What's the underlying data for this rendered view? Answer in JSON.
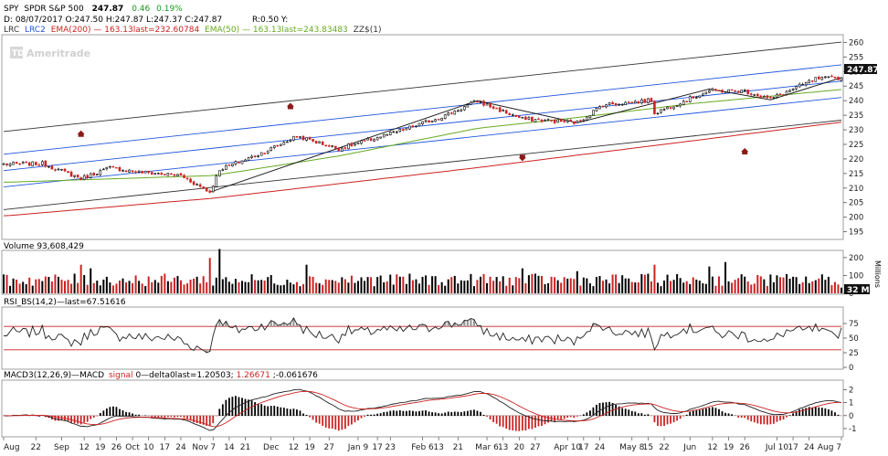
{
  "header": {
    "symbol": "SPY",
    "name": "SPDR S&P 500",
    "last": "247.87",
    "change": "0.46",
    "change_pct": "0.19%",
    "ohlc_line": "D: 08/07/2017 O:247.50 H:247.87 L:247.37 C:247.87",
    "ratio": "R:0.50 Y:",
    "indicators": [
      {
        "text": "LRC",
        "color": "#333333"
      },
      {
        "text": "LRC2",
        "color": "#2255dd"
      },
      {
        "text": "EMA(200) — 163.13last=232.60784",
        "color": "#cc2222"
      },
      {
        "text": "EMA(50) — 163.13last=243.83483",
        "color": "#66aa22"
      },
      {
        "text": "ZZ$(1)",
        "color": "#333333"
      }
    ]
  },
  "watermark": "Ameritrade",
  "price_badge": "247.87",
  "volume_badge": "32 M",
  "volume_unit": "Millions",
  "panel_titles": {
    "volume": "Volume 93,608,429",
    "rsi": "RSI_BS(14,2)—last=67.51616",
    "macd_prefix": "MACD3(12,26,9)—MACD",
    "macd_signal": "signal",
    "macd_rest": "0—delta0last=1.20503;",
    "macd_val": "1.26671",
    "macd_delta": ";-0.061676"
  },
  "colors": {
    "up": "#000000",
    "down": "#cc2222",
    "lrc": "#333333",
    "lrc2": "#2255dd",
    "ema200": "#cc2222",
    "ema50": "#66aa22",
    "arrow": "#8b1a1a",
    "rsi_level": "#cc2222",
    "macd_signal": "#cc2222"
  },
  "chart_data": [
    {
      "type": "candlestick",
      "title": "SPY SPDR S&P 500",
      "y_ticks": [
        195,
        200,
        205,
        210,
        215,
        220,
        225,
        230,
        235,
        240,
        245,
        250,
        255,
        260
      ],
      "ylim": [
        193,
        262
      ],
      "x_ticks": [
        "Aug",
        "22",
        "Sep",
        "12",
        "19",
        "26",
        "Oct",
        "10",
        "17",
        "24",
        "Nov",
        "7",
        "14",
        "21",
        "Dec",
        "12",
        "19",
        "27",
        "Jan 9",
        "17",
        "23",
        "Feb 6",
        "13",
        "21",
        "Mar 6",
        "13",
        "20",
        "27",
        "Apr 10",
        "17",
        "24",
        "May 8",
        "15",
        "22",
        "Jun",
        "12",
        "19",
        "26",
        "Jul 10",
        "17",
        "24",
        "Aug 7"
      ],
      "close_keypoints": [
        {
          "date": "2016-08-09",
          "close": 218.2
        },
        {
          "date": "2016-08-24",
          "close": 218.4
        },
        {
          "date": "2016-09-09",
          "close": 213.3
        },
        {
          "date": "2016-09-22",
          "close": 217.0
        },
        {
          "date": "2016-10-04",
          "close": 215.6
        },
        {
          "date": "2016-10-24",
          "close": 214.3
        },
        {
          "date": "2016-11-04",
          "close": 208.6
        },
        {
          "date": "2016-11-09",
          "close": 216.4
        },
        {
          "date": "2016-11-25",
          "close": 221.5
        },
        {
          "date": "2016-12-13",
          "close": 227.8
        },
        {
          "date": "2016-12-30",
          "close": 223.5
        },
        {
          "date": "2017-01-26",
          "close": 229.6
        },
        {
          "date": "2017-02-15",
          "close": 234.9
        },
        {
          "date": "2017-03-01",
          "close": 239.8
        },
        {
          "date": "2017-03-21",
          "close": 233.7
        },
        {
          "date": "2017-04-13",
          "close": 232.5
        },
        {
          "date": "2017-04-25",
          "close": 238.6
        },
        {
          "date": "2017-05-16",
          "close": 240.1
        },
        {
          "date": "2017-05-17",
          "close": 235.8
        },
        {
          "date": "2017-06-09",
          "close": 243.4
        },
        {
          "date": "2017-06-26",
          "close": 243.3
        },
        {
          "date": "2017-07-06",
          "close": 240.6
        },
        {
          "date": "2017-07-26",
          "close": 247.4
        },
        {
          "date": "2017-08-07",
          "close": 247.87
        }
      ],
      "ema50_keypoints": [
        {
          "date": "2016-08-09",
          "close": 212.0
        },
        {
          "date": "2016-11-07",
          "close": 214.3
        },
        {
          "date": "2016-12-30",
          "close": 221.0
        },
        {
          "date": "2017-03-01",
          "close": 230.5
        },
        {
          "date": "2017-04-13",
          "close": 234.2
        },
        {
          "date": "2017-06-01",
          "close": 238.9
        },
        {
          "date": "2017-08-07",
          "close": 243.83
        }
      ],
      "ema200_keypoints": [
        {
          "date": "2016-08-09",
          "close": 200.5
        },
        {
          "date": "2016-11-07",
          "close": 206.5
        },
        {
          "date": "2017-03-01",
          "close": 217.0
        },
        {
          "date": "2017-08-07",
          "close": 232.61
        }
      ],
      "regression_center": {
        "start": 216.0,
        "end": 246.7
      },
      "channels_inner_offset": 5.6,
      "channels_outer_offset": 13.4,
      "zigzag": [
        {
          "date": "2016-11-04",
          "close": 208.6
        },
        {
          "date": "2017-03-01",
          "close": 240.0
        },
        {
          "date": "2017-04-13",
          "close": 232.4
        },
        {
          "date": "2017-06-09",
          "close": 244.0
        },
        {
          "date": "2017-07-06",
          "close": 240.3
        },
        {
          "date": "2017-08-07",
          "close": 247.9
        }
      ],
      "arrows": [
        {
          "date": "2016-09-09",
          "value": 228.5,
          "dir": "up"
        },
        {
          "date": "2016-12-09",
          "value": 238.0,
          "dir": "up"
        },
        {
          "date": "2017-03-21",
          "value": 220.5,
          "dir": "down"
        },
        {
          "date": "2017-06-26",
          "value": 222.5,
          "dir": "up"
        }
      ]
    },
    {
      "type": "bar",
      "title": "Volume 93,608,429",
      "ylabel": "Millions",
      "y_ticks": [
        0,
        100,
        200
      ],
      "ylim": [
        0,
        230
      ],
      "spikes": [
        {
          "date": "2016-09-09",
          "value": 160
        },
        {
          "date": "2016-09-14",
          "value": 140
        },
        {
          "date": "2016-11-09",
          "value": 248
        },
        {
          "date": "2016-11-04",
          "value": 198
        },
        {
          "date": "2016-12-16",
          "value": 160
        },
        {
          "date": "2017-03-21",
          "value": 140
        },
        {
          "date": "2017-04-13",
          "value": 124
        },
        {
          "date": "2017-05-17",
          "value": 160
        },
        {
          "date": "2017-06-09",
          "value": 150
        },
        {
          "date": "2017-06-16",
          "value": 175
        }
      ],
      "last": 32
    },
    {
      "type": "line",
      "title": "RSI_BS(14,2)—last=67.51616",
      "y_ticks": [
        0,
        25,
        50,
        75
      ],
      "ylim": [
        0,
        100
      ],
      "levels": [
        30,
        70
      ],
      "last": 67.51616
    },
    {
      "type": "line",
      "title": "MACD3(12,26,9)",
      "y_ticks": [
        -1,
        0,
        1,
        2
      ],
      "ylim": [
        -1.5,
        2.6
      ],
      "macd_last": 1.20503,
      "signal_last": 1.26671,
      "delta_last": -0.061676
    }
  ]
}
